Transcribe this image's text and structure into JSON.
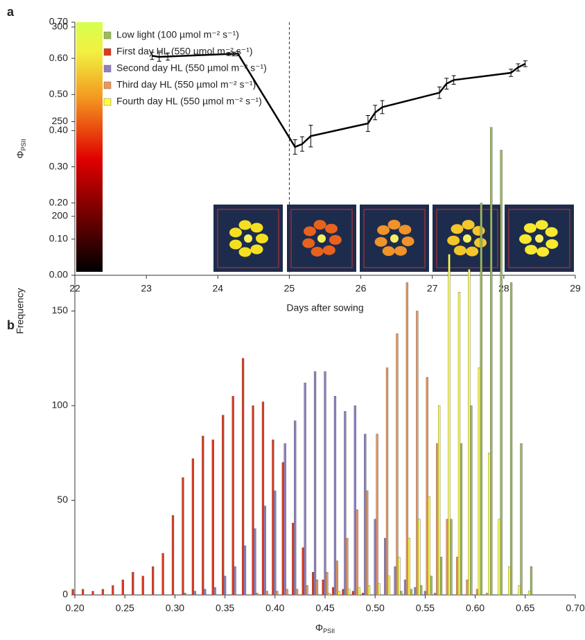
{
  "chart_data": [
    {
      "panel": "a",
      "type": "line",
      "x": [
        23.08,
        23.18,
        23.3,
        24.15,
        24.22,
        24.28,
        25.08,
        25.18,
        25.3,
        26.1,
        26.2,
        26.3,
        27.1,
        27.2,
        27.3,
        28.1,
        28.2,
        28.3
      ],
      "series": [
        {
          "color": "#000000",
          "values": [
            0.607,
            0.604,
            0.605,
            0.612,
            0.612,
            0.613,
            0.355,
            0.363,
            0.385,
            0.42,
            0.45,
            0.465,
            0.505,
            0.53,
            0.54,
            0.56,
            0.575,
            0.585
          ],
          "errors": [
            0.01,
            0.012,
            0.01,
            0.004,
            0.005,
            0.006,
            0.02,
            0.02,
            0.03,
            0.022,
            0.02,
            0.018,
            0.016,
            0.015,
            0.012,
            0.01,
            0.01,
            0.008
          ]
        }
      ],
      "xlim": [
        22,
        29
      ],
      "xticks": [
        22,
        23,
        24,
        25,
        26,
        27,
        28,
        29
      ],
      "ylim": [
        0,
        0.7
      ],
      "yticks": [
        {
          "value": 0,
          "label": "0.00"
        },
        {
          "value": 0.1,
          "label": "0.10"
        },
        {
          "value": 0.2,
          "label": "0.20"
        },
        {
          "value": 0.3,
          "label": "0.30"
        },
        {
          "value": 0.4,
          "label": "0.40"
        },
        {
          "value": 0.5,
          "label": "0.50"
        },
        {
          "value": 0.6,
          "label": "0.60"
        },
        {
          "value": 0.7,
          "label": "0.70"
        }
      ],
      "vline": 25,
      "xlabel": "Days after sowing",
      "ylabel": {
        "symbol": "Φ",
        "subscript": "PSII"
      }
    },
    {
      "panel": "b",
      "type": "bar",
      "x": [
        0.2,
        0.21,
        0.22,
        0.23,
        0.24,
        0.25,
        0.26,
        0.27,
        0.28,
        0.29,
        0.3,
        0.31,
        0.32,
        0.33,
        0.34,
        0.35,
        0.36,
        0.37,
        0.38,
        0.39,
        0.4,
        0.41,
        0.42,
        0.43,
        0.44,
        0.45,
        0.46,
        0.47,
        0.48,
        0.49,
        0.5,
        0.51,
        0.52,
        0.53,
        0.54,
        0.55,
        0.56,
        0.57,
        0.58,
        0.59,
        0.6,
        0.61,
        0.62,
        0.63,
        0.64,
        0.65,
        0.66
      ],
      "series": [
        {
          "name": "Low light (100 µmol m⁻² s⁻¹)",
          "color": "#9bbb59",
          "values": [
            0,
            0,
            0,
            0,
            0,
            0,
            0,
            0,
            0,
            0,
            0,
            0,
            0,
            0,
            0,
            0,
            0,
            0,
            0,
            0,
            0,
            0,
            0,
            0,
            0,
            0,
            0,
            0,
            0,
            0,
            0,
            0,
            0,
            2,
            3,
            5,
            10,
            20,
            40,
            80,
            100,
            207,
            247,
            235,
            165,
            80,
            15
          ]
        },
        {
          "name": "First day HL (550 µmol m⁻² s⁻¹)",
          "color": "#e2371b",
          "values": [
            3,
            3,
            2,
            3,
            5,
            8,
            12,
            10,
            15,
            22,
            42,
            62,
            72,
            84,
            82,
            95,
            105,
            125,
            100,
            102,
            82,
            70,
            38,
            25,
            12,
            8,
            4,
            3,
            2,
            1,
            0,
            0,
            0,
            0,
            0,
            0,
            0,
            0,
            0,
            0,
            0,
            0,
            0,
            0,
            0,
            0,
            0
          ]
        },
        {
          "name": "Second day HL (550 µmol m⁻² s⁻¹)",
          "color": "#8f80c4",
          "values": [
            0,
            0,
            0,
            0,
            0,
            0,
            0,
            0,
            0,
            0,
            0,
            1,
            2,
            3,
            4,
            10,
            15,
            26,
            35,
            47,
            55,
            80,
            92,
            112,
            118,
            118,
            105,
            97,
            100,
            85,
            40,
            30,
            15,
            8,
            4,
            2,
            1,
            0,
            0,
            0,
            0,
            0,
            0,
            0,
            0,
            0,
            0
          ]
        },
        {
          "name": "Third day HL (550 µmol m⁻² s⁻¹)",
          "color": "#e9975c",
          "values": [
            0,
            0,
            0,
            0,
            0,
            0,
            0,
            0,
            0,
            0,
            0,
            0,
            0,
            0,
            0,
            0,
            0,
            0,
            1,
            2,
            2,
            3,
            3,
            5,
            8,
            12,
            18,
            30,
            45,
            55,
            85,
            120,
            138,
            165,
            150,
            115,
            80,
            40,
            20,
            8,
            3,
            1,
            0,
            0,
            0,
            0,
            0
          ]
        },
        {
          "name": "Fourth day HL (550 µmol m⁻² s⁻¹)",
          "color": "#ffff40",
          "values": [
            0,
            0,
            0,
            0,
            0,
            0,
            0,
            0,
            0,
            0,
            0,
            0,
            0,
            0,
            0,
            0,
            0,
            0,
            0,
            0,
            0,
            0,
            0,
            0,
            0,
            1,
            2,
            3,
            4,
            5,
            6,
            10,
            20,
            30,
            40,
            52,
            100,
            180,
            160,
            172,
            120,
            75,
            40,
            15,
            5,
            2,
            0
          ]
        }
      ],
      "xlim": [
        0.2,
        0.7
      ],
      "xticks": [
        {
          "value": 0.2,
          "label": "0.20"
        },
        {
          "value": 0.25,
          "label": "0.25"
        },
        {
          "value": 0.3,
          "label": "0.30"
        },
        {
          "value": 0.35,
          "label": "0.35"
        },
        {
          "value": 0.4,
          "label": "0.40"
        },
        {
          "value": 0.45,
          "label": "0.45"
        },
        {
          "value": 0.5,
          "label": "0.50"
        },
        {
          "value": 0.55,
          "label": "0.55"
        },
        {
          "value": 0.6,
          "label": "0.60"
        },
        {
          "value": 0.65,
          "label": "0.65"
        },
        {
          "value": 0.7,
          "label": "0.70"
        }
      ],
      "ylim": [
        0,
        300
      ],
      "yticks": [
        0,
        50,
        100,
        150,
        200,
        250,
        300
      ],
      "legend": "top-left",
      "xlabel": {
        "symbol": "Φ",
        "subscript": "PSII"
      },
      "ylabel": "Frequency"
    }
  ]
}
